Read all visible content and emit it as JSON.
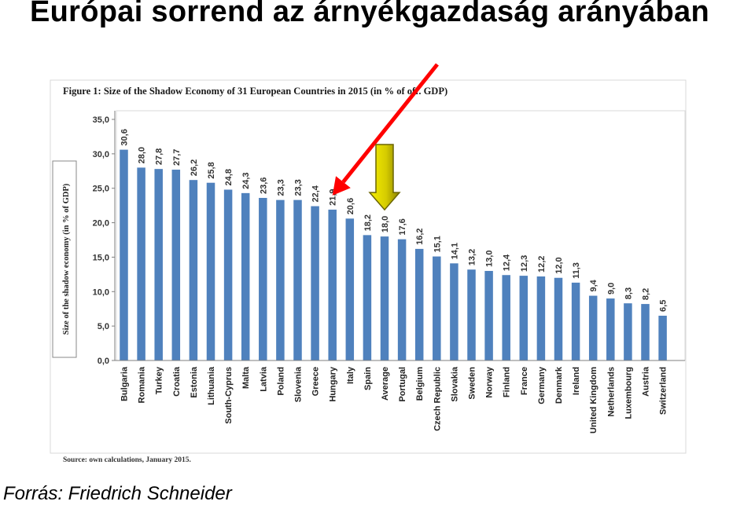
{
  "slide": {
    "title": "Európai sorrend az árnyékgazdaság arányában",
    "source_credit": "Forrás: Friedrich Schneider"
  },
  "chart_data": {
    "type": "bar",
    "title": "Figure 1: Size of the Shadow Economy of 31 European Countries in 2015 (in % of off. GDP)",
    "ylabel": "Size of the shadow economy (in % of GDP)",
    "xlabel": "",
    "ylim": [
      0,
      35
    ],
    "yticks": [
      "0,0",
      "5,0",
      "10,0",
      "15,0",
      "20,0",
      "25,0",
      "30,0",
      "35,0"
    ],
    "grid": false,
    "bar_color": "#4f81bd",
    "categories": [
      "Bulgaria",
      "Romania",
      "Turkey",
      "Croatia",
      "Estonia",
      "Lithuania",
      "South-Cyprus",
      "Malta",
      "Latvia",
      "Poland",
      "Slovenia",
      "Greece",
      "Hungary",
      "Italy",
      "Spain",
      "Average",
      "Portugal",
      "Belgium",
      "Czech Republic",
      "Slovakia",
      "Sweden",
      "Norway",
      "Finland",
      "France",
      "Germany",
      "Denmark",
      "Ireland",
      "United Kingdom",
      "Netherlands",
      "Luxembourg",
      "Austria",
      "Switzerland"
    ],
    "values": [
      30.6,
      28.0,
      27.8,
      27.7,
      26.2,
      25.8,
      24.8,
      24.3,
      23.6,
      23.3,
      23.3,
      22.4,
      21.9,
      20.6,
      18.2,
      18.0,
      17.6,
      16.2,
      15.1,
      14.1,
      13.2,
      13.0,
      12.4,
      12.3,
      12.2,
      12.0,
      11.3,
      9.4,
      9.0,
      8.3,
      8.2,
      6.5
    ],
    "value_labels": [
      "30,6",
      "28,0",
      "27,8",
      "27,7",
      "26,2",
      "25,8",
      "24,8",
      "24,3",
      "23,6",
      "23,3",
      "23,3",
      "22,4",
      "21,9",
      "20,6",
      "18,2",
      "18,0",
      "17,6",
      "16,2",
      "15,1",
      "14,1",
      "13,2",
      "13,0",
      "12,4",
      "12,3",
      "12,2",
      "12,0",
      "11,3",
      "9,4",
      "9,0",
      "8,3",
      "8,2",
      "6,5"
    ],
    "source_note": "Source: own calculations, January 2015.",
    "annotations": [
      {
        "type": "red-arrow",
        "target_category": "Hungary",
        "color": "#ff0000"
      },
      {
        "type": "yellow-down-arrow",
        "target_category": "Average",
        "color": "#e6d800"
      }
    ]
  }
}
